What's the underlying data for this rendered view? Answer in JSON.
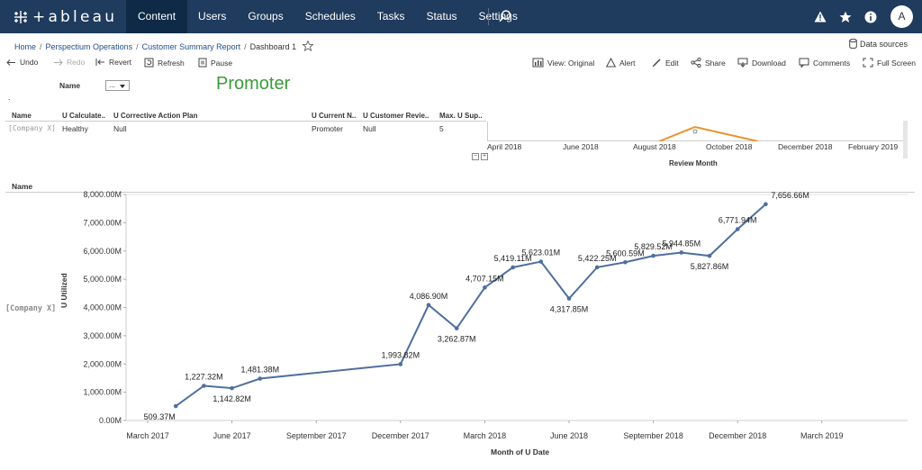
{
  "nav": {
    "logo_text": "+ableau",
    "items": [
      "Content",
      "Users",
      "Groups",
      "Schedules",
      "Tasks",
      "Status",
      "Settings"
    ],
    "active": "Content",
    "avatar": "A",
    "icons": [
      "search-icon",
      "alert-icon",
      "favorites-star-icon",
      "info-icon"
    ]
  },
  "breadcrumb": {
    "items": [
      "Home",
      "Perspectium Operations",
      "Customer Summary Report",
      "Dashboard 1"
    ],
    "data_sources": "Data sources"
  },
  "toolbar": {
    "undo": "Undo",
    "redo": "Redo",
    "revert": "Revert",
    "refresh": "Refresh",
    "pause": "Pause",
    "view": "View: Original",
    "alert": "Alert",
    "edit": "Edit",
    "share": "Share",
    "download": "Download",
    "comments": "Comments",
    "fullscreen": "Full Screen"
  },
  "filter": {
    "label": "Name",
    "value": "..."
  },
  "promoter": "Promoter",
  "dot": ".",
  "table": {
    "headers": [
      "Name",
      "U Calculate..",
      "U Corrective Action Plan",
      "U Current N..",
      "U Customer Revie..",
      "Max. U Sup.."
    ],
    "row": [
      "[Company X]",
      "Healthy",
      "Null",
      "Promoter",
      "Null",
      "5"
    ]
  },
  "timeline": {
    "ticks": [
      "April 2018",
      "June 2018",
      "August 2018",
      "October 2018",
      "December 2018",
      "February 2019"
    ],
    "title": "Review Month",
    "line_color": "#e8942f"
  },
  "chart_section": {
    "name_header": "Name",
    "row_label": "[Company X]"
  },
  "chart_data": {
    "type": "line",
    "xlabel": "Month of U Date",
    "ylabel": "U Utilized",
    "x_ticks": [
      "March 2017",
      "June 2017",
      "September 2017",
      "December 2017",
      "March 2018",
      "June 2018",
      "September 2018",
      "December 2018",
      "March 2019"
    ],
    "y_ticks": [
      "0.00M",
      "1,000.00M",
      "2,000.00M",
      "3,000.00M",
      "4,000.00M",
      "5,000.00M",
      "6,000.00M",
      "7,000.00M",
      "8,000.00M"
    ],
    "ylim": [
      0,
      8000
    ],
    "line_color": "#4e6f9e",
    "series": [
      {
        "points": [
          {
            "x": "2017-04",
            "y": 509.37,
            "label": "509.37M"
          },
          {
            "x": "2017-05",
            "y": 1227.32,
            "label": "1,227.32M"
          },
          {
            "x": "2017-06",
            "y": 1142.82,
            "label": "1,142.82M"
          },
          {
            "x": "2017-07",
            "y": 1481.38,
            "label": "1,481.38M"
          },
          {
            "x": "2017-12",
            "y": 1993.82,
            "label": "1,993.82M"
          },
          {
            "x": "2018-01",
            "y": 4086.9,
            "label": "4,086.90M"
          },
          {
            "x": "2018-02",
            "y": 3262.87,
            "label": "3,262.87M"
          },
          {
            "x": "2018-03",
            "y": 4707.15,
            "label": "4,707.15M"
          },
          {
            "x": "2018-04",
            "y": 5419.11,
            "label": "5,419.11M"
          },
          {
            "x": "2018-05",
            "y": 5623.01,
            "label": "5,623.01M"
          },
          {
            "x": "2018-06",
            "y": 4317.85,
            "label": "4,317.85M"
          },
          {
            "x": "2018-07",
            "y": 5422.25,
            "label": "5,422.25M"
          },
          {
            "x": "2018-08",
            "y": 5600.59,
            "label": "5,600.59M"
          },
          {
            "x": "2018-09",
            "y": 5829.52,
            "label": "5,829.52M"
          },
          {
            "x": "2018-10",
            "y": 5944.85,
            "label": "5,944.85M"
          },
          {
            "x": "2018-11",
            "y": 5827.86,
            "label": "5,827.86M"
          },
          {
            "x": "2018-12",
            "y": 6771.94,
            "label": "6,771.94M"
          },
          {
            "x": "2019-01",
            "y": 7656.66,
            "label": "7,656.66M"
          }
        ]
      }
    ]
  }
}
